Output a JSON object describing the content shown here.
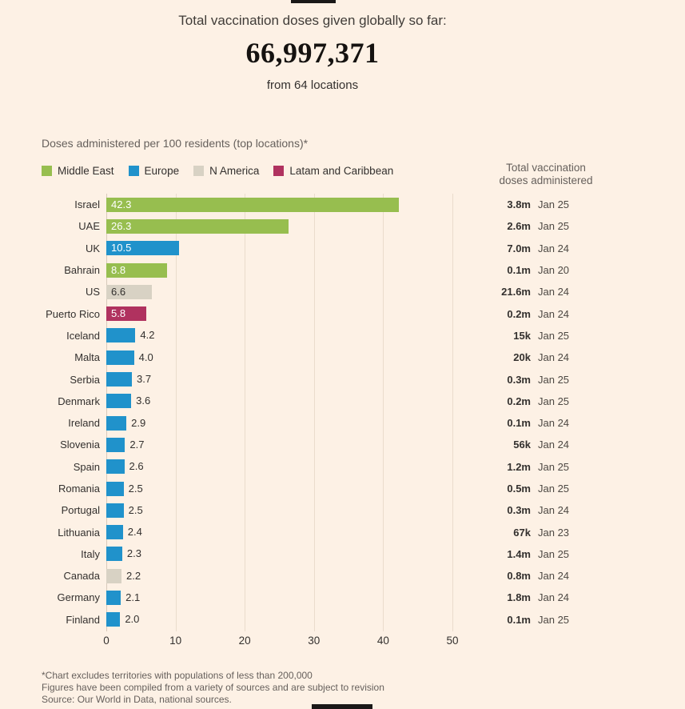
{
  "header": {
    "title": "Total vaccination doses given globally so far:",
    "big_number": "66,997,371",
    "subtitle": "from 64 locations"
  },
  "chart": {
    "title": "Doses administered per 100 residents (top locations)*",
    "right_header_line1": "Total vaccination",
    "right_header_line2": "doses administered",
    "legend": [
      {
        "label": "Middle East",
        "color": "#97be4f"
      },
      {
        "label": "Europe",
        "color": "#2092cb"
      },
      {
        "label": "N America",
        "color": "#d8d2c4"
      },
      {
        "label": "Latam and Caribbean",
        "color": "#b0325f"
      }
    ]
  },
  "chart_data": {
    "type": "bar",
    "orientation": "horizontal",
    "title": "Doses administered per 100 residents (top locations)*",
    "xlim": [
      0,
      50
    ],
    "x_ticks": [
      0,
      10,
      20,
      30,
      40,
      50
    ],
    "inside_label_threshold": 5,
    "rows": [
      {
        "country": "Israel",
        "value": 42.3,
        "category": "Middle East",
        "total": "3.8m",
        "date": "Jan 25"
      },
      {
        "country": "UAE",
        "value": 26.3,
        "category": "Middle East",
        "total": "2.6m",
        "date": "Jan 25"
      },
      {
        "country": "UK",
        "value": 10.5,
        "category": "Europe",
        "total": "7.0m",
        "date": "Jan 24"
      },
      {
        "country": "Bahrain",
        "value": 8.8,
        "category": "Middle East",
        "total": "0.1m",
        "date": "Jan 20"
      },
      {
        "country": "US",
        "value": 6.6,
        "category": "N America",
        "total": "21.6m",
        "date": "Jan 24"
      },
      {
        "country": "Puerto Rico",
        "value": 5.8,
        "category": "Latam and Caribbean",
        "total": "0.2m",
        "date": "Jan 24"
      },
      {
        "country": "Iceland",
        "value": 4.2,
        "category": "Europe",
        "total": "15k",
        "date": "Jan 25"
      },
      {
        "country": "Malta",
        "value": 4.0,
        "category": "Europe",
        "total": "20k",
        "date": "Jan 24"
      },
      {
        "country": "Serbia",
        "value": 3.7,
        "category": "Europe",
        "total": "0.3m",
        "date": "Jan 25"
      },
      {
        "country": "Denmark",
        "value": 3.6,
        "category": "Europe",
        "total": "0.2m",
        "date": "Jan 25"
      },
      {
        "country": "Ireland",
        "value": 2.9,
        "category": "Europe",
        "total": "0.1m",
        "date": "Jan 24"
      },
      {
        "country": "Slovenia",
        "value": 2.7,
        "category": "Europe",
        "total": "56k",
        "date": "Jan 24"
      },
      {
        "country": "Spain",
        "value": 2.6,
        "category": "Europe",
        "total": "1.2m",
        "date": "Jan 25"
      },
      {
        "country": "Romania",
        "value": 2.5,
        "category": "Europe",
        "total": "0.5m",
        "date": "Jan 25"
      },
      {
        "country": "Portugal",
        "value": 2.5,
        "category": "Europe",
        "total": "0.3m",
        "date": "Jan 24"
      },
      {
        "country": "Lithuania",
        "value": 2.4,
        "category": "Europe",
        "total": "67k",
        "date": "Jan 23"
      },
      {
        "country": "Italy",
        "value": 2.3,
        "category": "Europe",
        "total": "1.4m",
        "date": "Jan 25"
      },
      {
        "country": "Canada",
        "value": 2.2,
        "category": "N America",
        "total": "0.8m",
        "date": "Jan 24"
      },
      {
        "country": "Germany",
        "value": 2.1,
        "category": "Europe",
        "total": "1.8m",
        "date": "Jan 24"
      },
      {
        "country": "Finland",
        "value": 2.0,
        "category": "Europe",
        "total": "0.1m",
        "date": "Jan 25"
      }
    ]
  },
  "footnotes": [
    "*Chart excludes territories with populations of less than 200,000",
    "Figures have been compiled from a variety of sources and are subject to revision",
    "Source: Our World in Data, national sources."
  ],
  "colors": {
    "background": "#fdf1e5",
    "text_dark": "#33302e",
    "text_secondary": "#66605c",
    "inside_label_light": "#ffffff"
  }
}
